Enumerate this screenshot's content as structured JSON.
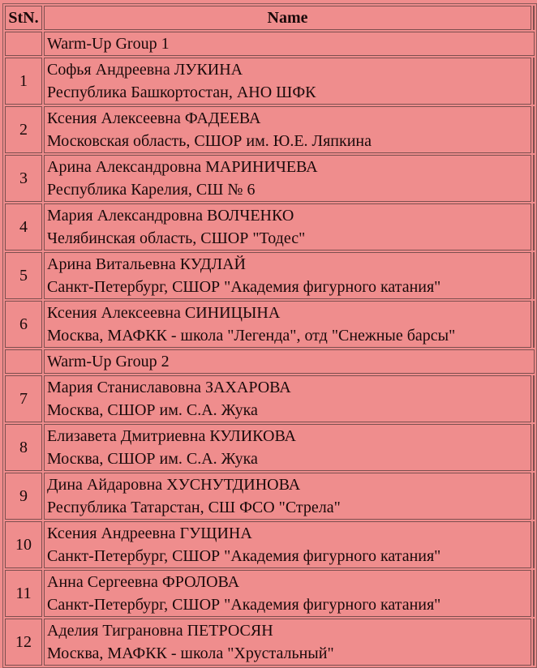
{
  "header": {
    "stn": "StN.",
    "name": "Name"
  },
  "rows": [
    {
      "type": "group",
      "label": "Warm-Up Group 1"
    },
    {
      "type": "athlete",
      "stn": "1",
      "name": "Софья Андреевна ЛУКИНА",
      "club": "Республика Башкортостан, АНО ШФК"
    },
    {
      "type": "athlete",
      "stn": "2",
      "name": "Ксения Алексеевна ФАДЕЕВА",
      "club": "Московская область, СШОР им. Ю.Е. Ляпкина"
    },
    {
      "type": "athlete",
      "stn": "3",
      "name": "Арина Александровна МАРИНИЧЕВА",
      "club": "Республика Карелия, СШ № 6"
    },
    {
      "type": "athlete",
      "stn": "4",
      "name": "Мария Александровна ВОЛЧЕНКО",
      "club": "Челябинская область, СШОР \"Тодес\""
    },
    {
      "type": "athlete",
      "stn": "5",
      "name": "Арина Витальевна КУДЛАЙ",
      "club": "Санкт-Петербург, СШОР \"Академия фигурного катания\""
    },
    {
      "type": "athlete",
      "stn": "6",
      "name": "Ксения Алексеевна СИНИЦЫНА",
      "club": "Москва, МАФКК - школа \"Легенда\", отд \"Снежные барсы\""
    },
    {
      "type": "group",
      "label": "Warm-Up Group 2"
    },
    {
      "type": "athlete",
      "stn": "7",
      "name": "Мария Станиславовна ЗАХАРОВА",
      "club": "Москва, СШОР им. С.А. Жука"
    },
    {
      "type": "athlete",
      "stn": "8",
      "name": "Елизавета Дмитриевна КУЛИКОВА",
      "club": "Москва, СШОР им. С.А. Жука"
    },
    {
      "type": "athlete",
      "stn": "9",
      "name": "Дина Айдаровна ХУСНУТДИНОВА",
      "club": "Республика Татарстан, СШ ФСО \"Стрела\""
    },
    {
      "type": "athlete",
      "stn": "10",
      "name": "Ксения Андреевна ГУЩИНА",
      "club": "Санкт-Петербург, СШОР \"Академия фигурного катания\""
    },
    {
      "type": "athlete",
      "stn": "11",
      "name": "Анна Сергеевна ФРОЛОВА",
      "club": "Санкт-Петербург, СШОР \"Академия фигурного катания\""
    },
    {
      "type": "athlete",
      "stn": "12",
      "name": "Аделия Тиграновна ПЕТРОСЯН",
      "club": "Москва, МАФКК - школа \"Хрустальный\""
    }
  ],
  "colors": {
    "background": "#ef8d8d",
    "border": "#7d4f4f"
  }
}
